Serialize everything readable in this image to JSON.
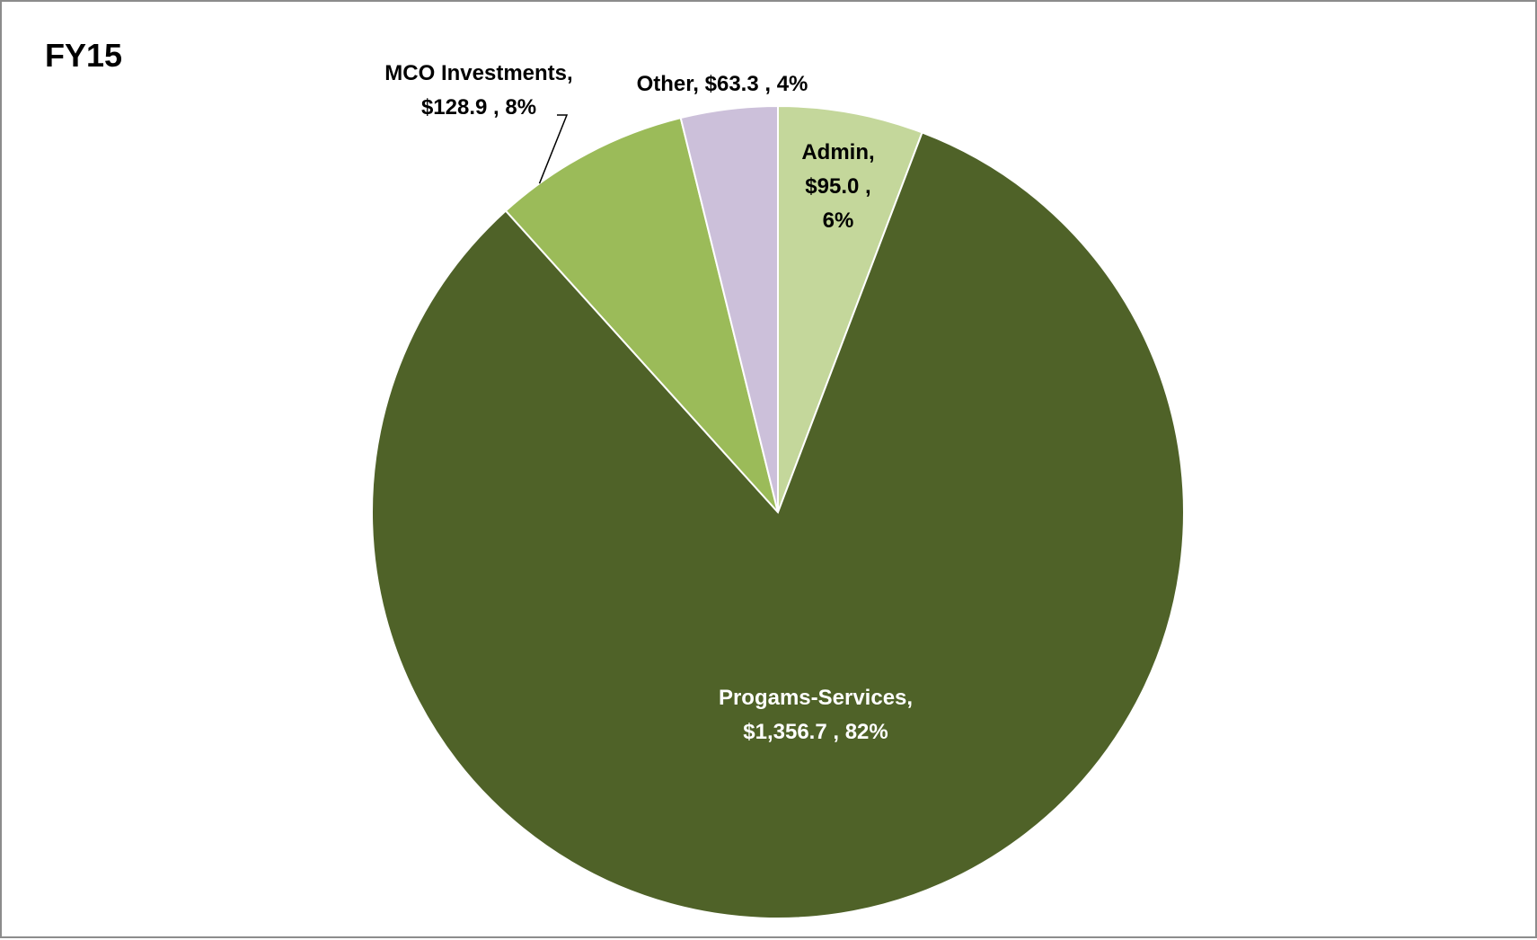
{
  "chart_data": {
    "type": "pie",
    "title": "FY15",
    "start_angle_deg": 0,
    "direction": "clockwise",
    "slices": [
      {
        "name": "Admin",
        "value": 95.0,
        "percent": 6,
        "color": "#c4d79b",
        "label_color": "#000000",
        "label_lines": [
          "Admin,",
          "$95.0 ,",
          "6%"
        ]
      },
      {
        "name": "Progams-Services",
        "value": 1356.7,
        "percent": 82,
        "color": "#4f6228",
        "label_color": "#ffffff",
        "label_lines": [
          "Progams-Services,",
          "$1,356.7 , 82%"
        ]
      },
      {
        "name": "MCO Investments",
        "value": 128.9,
        "percent": 8,
        "color": "#9bbb59",
        "label_color": "#000000",
        "label_lines": [
          "MCO Investments,",
          "$128.9 , 8%"
        ]
      },
      {
        "name": "Other",
        "value": 63.3,
        "percent": 4,
        "color": "#ccc0da",
        "label_color": "#000000",
        "label_lines": [
          "Other, $63.3 , 4%"
        ]
      }
    ]
  }
}
